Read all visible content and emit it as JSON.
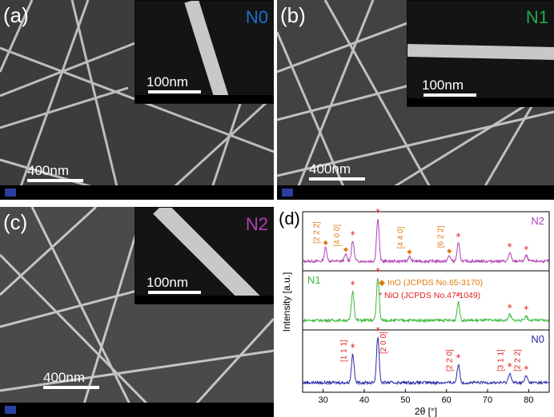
{
  "panels": [
    {
      "label": "(a)",
      "tag": "N0",
      "tag_color": "#1f6fd0",
      "scale": "400nm",
      "inset_scale": "100nm"
    },
    {
      "label": "(b)",
      "tag": "N1",
      "tag_color": "#1faa4a",
      "scale": "400nm",
      "inset_scale": "100nm"
    },
    {
      "label": "(c)",
      "tag": "N2",
      "tag_color": "#b040b0",
      "scale": "400nm",
      "inset_scale": "100nm"
    }
  ],
  "chart_data": {
    "type": "line",
    "panel_label": "(d)",
    "xlabel": "2θ [°]",
    "ylabel": "Intensity [a.u.]",
    "xlim": [
      25,
      85
    ],
    "xticks": [
      30,
      40,
      50,
      60,
      70,
      80
    ],
    "series": [
      {
        "name": "N2",
        "color": "#b040b0",
        "peaks": [
          [
            30.6,
            0.3
          ],
          [
            35.5,
            0.15
          ],
          [
            37.2,
            0.45
          ],
          [
            43.3,
            0.95
          ],
          [
            51.0,
            0.1
          ],
          [
            60.7,
            0.12
          ],
          [
            62.9,
            0.4
          ],
          [
            75.4,
            0.18
          ],
          [
            79.4,
            0.12
          ]
        ]
      },
      {
        "name": "N1",
        "color": "#3cb83c",
        "peaks": [
          [
            37.2,
            0.65
          ],
          [
            43.3,
            0.95
          ],
          [
            62.9,
            0.4
          ],
          [
            75.4,
            0.13
          ],
          [
            79.4,
            0.1
          ]
        ]
      },
      {
        "name": "N0",
        "color": "#2a2aa8",
        "peaks": [
          [
            37.2,
            0.6
          ],
          [
            43.3,
            0.95
          ],
          [
            62.9,
            0.38
          ],
          [
            75.4,
            0.2
          ],
          [
            79.4,
            0.14
          ]
        ]
      }
    ],
    "legend": [
      {
        "symbol": "◆",
        "text": "InO (JCPDS No.65-3170)",
        "color": "#e07b10"
      },
      {
        "symbol": "*",
        "text": "NiO (JCPDS No.47-1049)",
        "color": "#e02020"
      }
    ],
    "annotations": [
      {
        "text": "[2 2 2]",
        "x": 30.6,
        "series": "N2",
        "color": "#e07b10"
      },
      {
        "text": "[4 0 0]",
        "x": 35.5,
        "series": "N2",
        "color": "#e07b10"
      },
      {
        "text": "[4 4 0]",
        "x": 51.0,
        "series": "N2",
        "color": "#e07b10"
      },
      {
        "text": "[6 2 2]",
        "x": 60.7,
        "series": "N2",
        "color": "#e07b10"
      },
      {
        "text": "[1 1 1]",
        "x": 37.2,
        "series": "N0",
        "color": "#e02020"
      },
      {
        "text": "[2 0 0]",
        "x": 43.3,
        "series": "N0",
        "color": "#e02020"
      },
      {
        "text": "[2 2 0]",
        "x": 62.9,
        "series": "N0",
        "color": "#e02020"
      },
      {
        "text": "[3 1 1]",
        "x": 75.4,
        "series": "N0",
        "color": "#e02020"
      },
      {
        "text": "[2 2 2]",
        "x": 79.4,
        "series": "N0",
        "color": "#e02020"
      }
    ]
  }
}
